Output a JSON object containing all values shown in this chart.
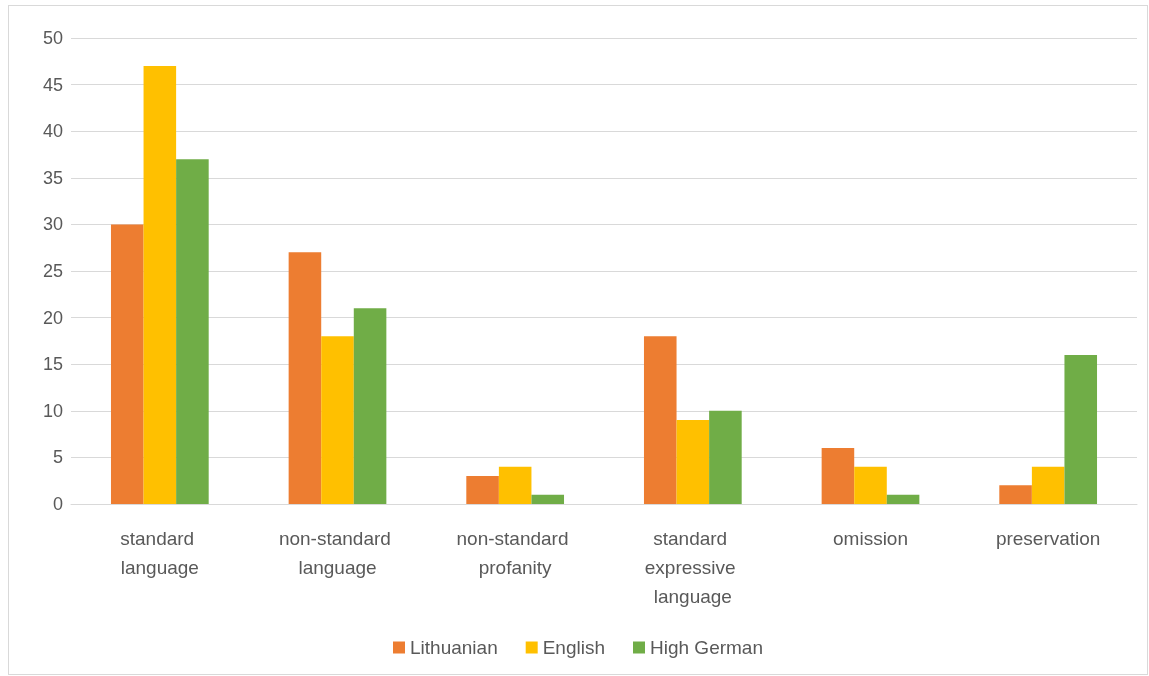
{
  "chart_data": {
    "type": "bar",
    "categories": [
      "standard language",
      "non-standard language",
      "non-standard profanity",
      "standard expressive language",
      "omission",
      "preservation"
    ],
    "series": [
      {
        "name": "Lithuanian",
        "color": "#ed7d31",
        "values": [
          30,
          27,
          3,
          18,
          6,
          2
        ]
      },
      {
        "name": "English",
        "color": "#ffc000",
        "values": [
          47,
          18,
          4,
          9,
          4,
          4
        ]
      },
      {
        "name": "High German",
        "color": "#70ad47",
        "values": [
          37,
          21,
          1,
          10,
          1,
          16
        ]
      }
    ],
    "ylim": [
      0,
      50
    ],
    "yticks": [
      0,
      5,
      10,
      15,
      20,
      25,
      30,
      35,
      40,
      45,
      50
    ],
    "grid": "y",
    "legend": "bottom"
  }
}
